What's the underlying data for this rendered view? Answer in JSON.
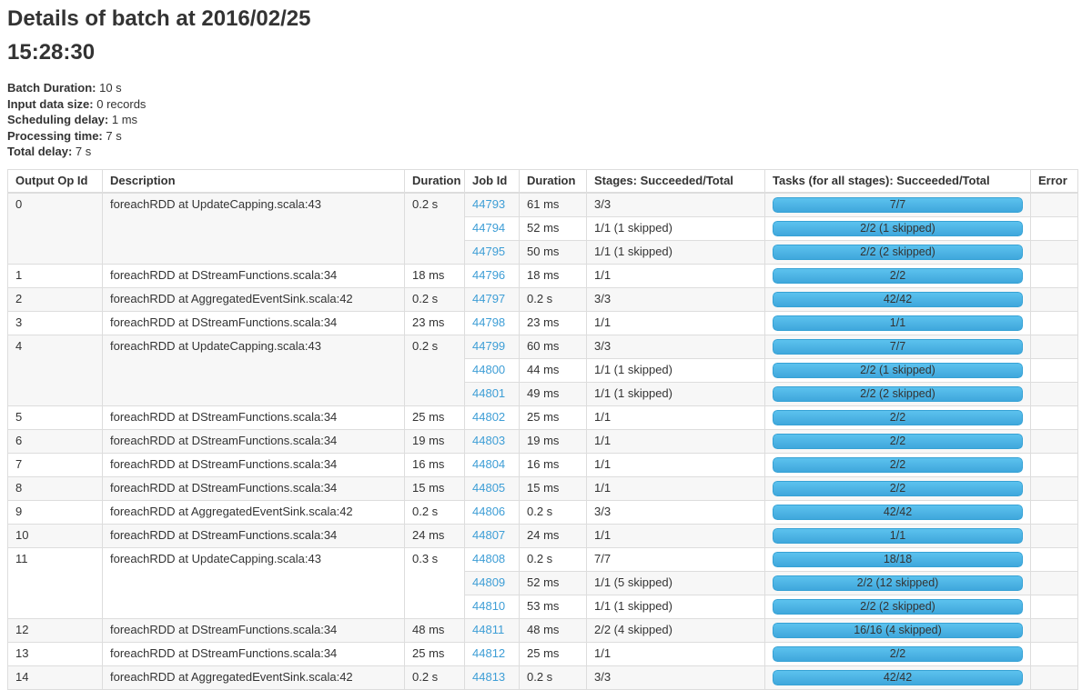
{
  "page": {
    "title": "Details of batch at 2016/02/25 15:28:30",
    "summary": [
      {
        "label": "Batch Duration:",
        "value": "10 s"
      },
      {
        "label": "Input data size:",
        "value": "0 records"
      },
      {
        "label": "Scheduling delay:",
        "value": "1 ms"
      },
      {
        "label": "Processing time:",
        "value": "7 s"
      },
      {
        "label": "Total delay:",
        "value": "7 s"
      }
    ]
  },
  "colors": {
    "link": "#3e9ed6",
    "progress_bar_top": "#5cc2ee",
    "progress_bar_bottom": "#3fa7dc",
    "row_stripe": "#f7f7f7",
    "table_border": "#dddddd"
  },
  "table": {
    "columns": [
      "Output Op Id",
      "Description",
      "Duration",
      "Job Id",
      "Duration",
      "Stages: Succeeded/Total",
      "Tasks (for all stages): Succeeded/Total",
      "Error"
    ],
    "groups": [
      {
        "op_id": "0",
        "description": "foreachRDD at UpdateCapping.scala:43",
        "duration": "0.2 s",
        "jobs": [
          {
            "job_id": "44793",
            "duration": "61 ms",
            "stages": "3/3",
            "tasks": "7/7",
            "error": ""
          },
          {
            "job_id": "44794",
            "duration": "52 ms",
            "stages": "1/1 (1 skipped)",
            "tasks": "2/2 (1 skipped)",
            "error": ""
          },
          {
            "job_id": "44795",
            "duration": "50 ms",
            "stages": "1/1 (1 skipped)",
            "tasks": "2/2 (2 skipped)",
            "error": ""
          }
        ]
      },
      {
        "op_id": "1",
        "description": "foreachRDD at DStreamFunctions.scala:34",
        "duration": "18 ms",
        "jobs": [
          {
            "job_id": "44796",
            "duration": "18 ms",
            "stages": "1/1",
            "tasks": "2/2",
            "error": ""
          }
        ]
      },
      {
        "op_id": "2",
        "description": "foreachRDD at AggregatedEventSink.scala:42",
        "duration": "0.2 s",
        "jobs": [
          {
            "job_id": "44797",
            "duration": "0.2 s",
            "stages": "3/3",
            "tasks": "42/42",
            "error": ""
          }
        ]
      },
      {
        "op_id": "3",
        "description": "foreachRDD at DStreamFunctions.scala:34",
        "duration": "23 ms",
        "jobs": [
          {
            "job_id": "44798",
            "duration": "23 ms",
            "stages": "1/1",
            "tasks": "1/1",
            "error": ""
          }
        ]
      },
      {
        "op_id": "4",
        "description": "foreachRDD at UpdateCapping.scala:43",
        "duration": "0.2 s",
        "jobs": [
          {
            "job_id": "44799",
            "duration": "60 ms",
            "stages": "3/3",
            "tasks": "7/7",
            "error": ""
          },
          {
            "job_id": "44800",
            "duration": "44 ms",
            "stages": "1/1 (1 skipped)",
            "tasks": "2/2 (1 skipped)",
            "error": ""
          },
          {
            "job_id": "44801",
            "duration": "49 ms",
            "stages": "1/1 (1 skipped)",
            "tasks": "2/2 (2 skipped)",
            "error": ""
          }
        ]
      },
      {
        "op_id": "5",
        "description": "foreachRDD at DStreamFunctions.scala:34",
        "duration": "25 ms",
        "jobs": [
          {
            "job_id": "44802",
            "duration": "25 ms",
            "stages": "1/1",
            "tasks": "2/2",
            "error": ""
          }
        ]
      },
      {
        "op_id": "6",
        "description": "foreachRDD at DStreamFunctions.scala:34",
        "duration": "19 ms",
        "jobs": [
          {
            "job_id": "44803",
            "duration": "19 ms",
            "stages": "1/1",
            "tasks": "2/2",
            "error": ""
          }
        ]
      },
      {
        "op_id": "7",
        "description": "foreachRDD at DStreamFunctions.scala:34",
        "duration": "16 ms",
        "jobs": [
          {
            "job_id": "44804",
            "duration": "16 ms",
            "stages": "1/1",
            "tasks": "2/2",
            "error": ""
          }
        ]
      },
      {
        "op_id": "8",
        "description": "foreachRDD at DStreamFunctions.scala:34",
        "duration": "15 ms",
        "jobs": [
          {
            "job_id": "44805",
            "duration": "15 ms",
            "stages": "1/1",
            "tasks": "2/2",
            "error": ""
          }
        ]
      },
      {
        "op_id": "9",
        "description": "foreachRDD at AggregatedEventSink.scala:42",
        "duration": "0.2 s",
        "jobs": [
          {
            "job_id": "44806",
            "duration": "0.2 s",
            "stages": "3/3",
            "tasks": "42/42",
            "error": ""
          }
        ]
      },
      {
        "op_id": "10",
        "description": "foreachRDD at DStreamFunctions.scala:34",
        "duration": "24 ms",
        "jobs": [
          {
            "job_id": "44807",
            "duration": "24 ms",
            "stages": "1/1",
            "tasks": "1/1",
            "error": ""
          }
        ]
      },
      {
        "op_id": "11",
        "description": "foreachRDD at UpdateCapping.scala:43",
        "duration": "0.3 s",
        "jobs": [
          {
            "job_id": "44808",
            "duration": "0.2 s",
            "stages": "7/7",
            "tasks": "18/18",
            "error": ""
          },
          {
            "job_id": "44809",
            "duration": "52 ms",
            "stages": "1/1 (5 skipped)",
            "tasks": "2/2 (12 skipped)",
            "error": ""
          },
          {
            "job_id": "44810",
            "duration": "53 ms",
            "stages": "1/1 (1 skipped)",
            "tasks": "2/2 (2 skipped)",
            "error": ""
          }
        ]
      },
      {
        "op_id": "12",
        "description": "foreachRDD at DStreamFunctions.scala:34",
        "duration": "48 ms",
        "jobs": [
          {
            "job_id": "44811",
            "duration": "48 ms",
            "stages": "2/2 (4 skipped)",
            "tasks": "16/16 (4 skipped)",
            "error": ""
          }
        ]
      },
      {
        "op_id": "13",
        "description": "foreachRDD at DStreamFunctions.scala:34",
        "duration": "25 ms",
        "jobs": [
          {
            "job_id": "44812",
            "duration": "25 ms",
            "stages": "1/1",
            "tasks": "2/2",
            "error": ""
          }
        ]
      },
      {
        "op_id": "14",
        "description": "foreachRDD at AggregatedEventSink.scala:42",
        "duration": "0.2 s",
        "jobs": [
          {
            "job_id": "44813",
            "duration": "0.2 s",
            "stages": "3/3",
            "tasks": "42/42",
            "error": ""
          }
        ]
      }
    ]
  }
}
